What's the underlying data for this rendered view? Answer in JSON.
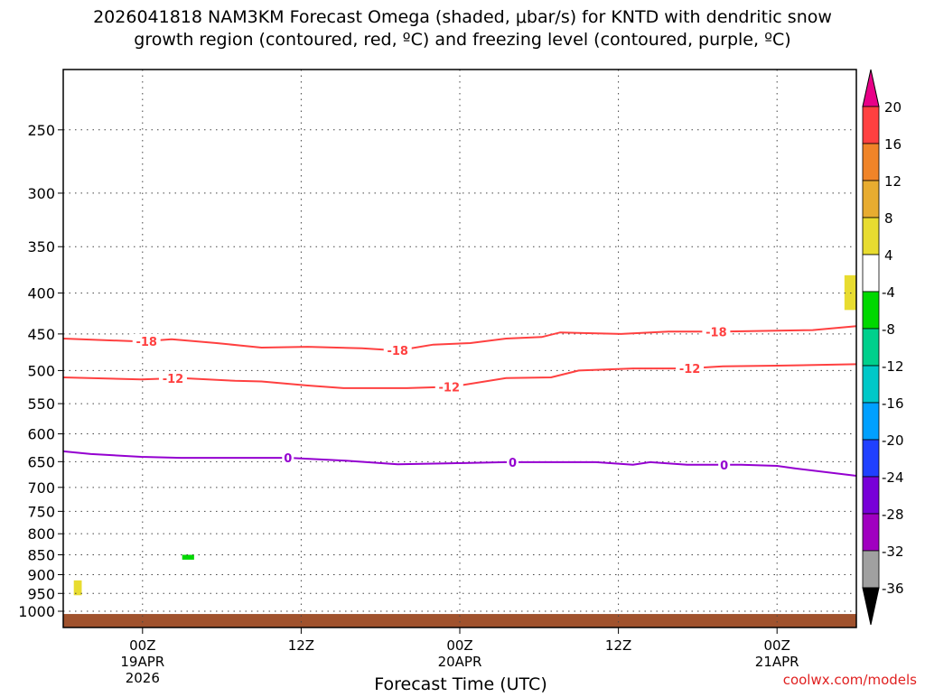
{
  "chart_data": {
    "type": "heatmap",
    "title_line1": "2026041818 NAM3KM Forecast Omega (shaded, μbar/s) for KNTD with dendritic snow",
    "title_line2": "growth region (contoured, red, ºC) and freezing level (contoured, purple, ºC)",
    "xlabel": "Forecast Time (UTC)",
    "ylabel": "",
    "credit": "coolwx.com/models",
    "xlim_hours": [
      0,
      60
    ],
    "ylim_hPa": [
      210,
      1048
    ],
    "yscale": "log",
    "grid": true,
    "yticks": [
      250,
      300,
      350,
      400,
      450,
      500,
      550,
      600,
      650,
      700,
      750,
      800,
      850,
      900,
      950,
      1000
    ],
    "xticks": [
      {
        "hour": 6,
        "lines": [
          "00Z",
          "19APR",
          "2026"
        ]
      },
      {
        "hour": 18,
        "lines": [
          "12Z"
        ]
      },
      {
        "hour": 30,
        "lines": [
          "00Z",
          "20APR"
        ]
      },
      {
        "hour": 42,
        "lines": [
          "12Z"
        ]
      },
      {
        "hour": 54,
        "lines": [
          "00Z",
          "21APR"
        ]
      }
    ],
    "contours": [
      {
        "name": "dgz -18C",
        "value": "-18",
        "color": "#ff4040",
        "points": [
          [
            0,
            456
          ],
          [
            5.9,
            460
          ],
          [
            8.2,
            457
          ],
          [
            11.6,
            462
          ],
          [
            15,
            468
          ],
          [
            18.5,
            467
          ],
          [
            22.6,
            469
          ],
          [
            25.3,
            472
          ],
          [
            28,
            464
          ],
          [
            30.8,
            462
          ],
          [
            33.5,
            456
          ],
          [
            36.2,
            454
          ],
          [
            37.6,
            448
          ],
          [
            42.2,
            450
          ],
          [
            45.8,
            447
          ],
          [
            49.9,
            447
          ],
          [
            56.7,
            445
          ],
          [
            60,
            440
          ]
        ],
        "label_hours": [
          6.3,
          25.3,
          49.4
        ]
      },
      {
        "name": "dgz -12C",
        "value": "-12",
        "color": "#ff4040",
        "points": [
          [
            0,
            510
          ],
          [
            5.9,
            513
          ],
          [
            8.9,
            511
          ],
          [
            13,
            515
          ],
          [
            15,
            516
          ],
          [
            18.5,
            522
          ],
          [
            21.2,
            526
          ],
          [
            26,
            526
          ],
          [
            29.4,
            524
          ],
          [
            33.5,
            511
          ],
          [
            36.9,
            510
          ],
          [
            39,
            500
          ],
          [
            43.1,
            497
          ],
          [
            47.2,
            497
          ],
          [
            49.9,
            494
          ],
          [
            54,
            493
          ],
          [
            60,
            491
          ]
        ],
        "label_hours": [
          8.3,
          29.2,
          47.4
        ]
      },
      {
        "name": "freezing level 0C",
        "value": "0",
        "color": "#9400d0",
        "points": [
          [
            0,
            631
          ],
          [
            2.1,
            636
          ],
          [
            5.9,
            641
          ],
          [
            8.9,
            643
          ],
          [
            13,
            643
          ],
          [
            17.1,
            643
          ],
          [
            21.2,
            648
          ],
          [
            25.3,
            655
          ],
          [
            29.4,
            653
          ],
          [
            33.5,
            651
          ],
          [
            37.6,
            651
          ],
          [
            40.3,
            651
          ],
          [
            43.1,
            656
          ],
          [
            44.4,
            651
          ],
          [
            47.2,
            656
          ],
          [
            51.3,
            656
          ],
          [
            54,
            658
          ],
          [
            55.4,
            663
          ],
          [
            60,
            677
          ]
        ],
        "label_hours": [
          17,
          34,
          50
        ]
      }
    ],
    "shaded_regions": [
      {
        "bin": "4 to 8",
        "color": "#e8dc30",
        "hours": [
          59.1,
          60
        ],
        "p_range": [
          380,
          420
        ]
      },
      {
        "bin": "-8 to -4",
        "color": "#00d800",
        "hours": [
          9.0,
          9.9
        ],
        "p_range": [
          850,
          862
        ]
      },
      {
        "bin": "4 to 8",
        "color": "#e8dc30",
        "hours": [
          0.8,
          1.4
        ],
        "p_range": [
          915,
          955
        ]
      },
      {
        "bin": "below ground",
        "color": "#a0522d",
        "hours": [
          0,
          60
        ],
        "p_range": [
          1008,
          1048
        ]
      }
    ],
    "colorbar": {
      "bins": [
        {
          "range": "16 to 20",
          "color": "#ff4040"
        },
        {
          "range": "12 to 16",
          "color": "#f08428"
        },
        {
          "range": "8 to 12",
          "color": "#e8ac30"
        },
        {
          "range": "4 to 8",
          "color": "#e8dc30"
        },
        {
          "range": "-4 to 4",
          "color": "#ffffff"
        },
        {
          "range": "-8 to -4",
          "color": "#00d800"
        },
        {
          "range": "-12 to -8",
          "color": "#00d08c"
        },
        {
          "range": "-16 to -12",
          "color": "#00c8c8"
        },
        {
          "range": "-20 to -16",
          "color": "#00a0ff"
        },
        {
          "range": "-24 to -20",
          "color": "#2040ff"
        },
        {
          "range": "-28 to -24",
          "color": "#7800d8"
        },
        {
          "range": "-32 to -28",
          "color": "#a000c0"
        },
        {
          "range": "-36 to -32",
          "color": "#a0a0a0"
        }
      ],
      "labels": [
        "20",
        "16",
        "12",
        "8",
        "4",
        "-4",
        "-8",
        "-12",
        "-16",
        "-20",
        "-24",
        "-28",
        "-32",
        "-36"
      ],
      "over_color": "#e80088",
      "under_color": "#000000"
    }
  }
}
